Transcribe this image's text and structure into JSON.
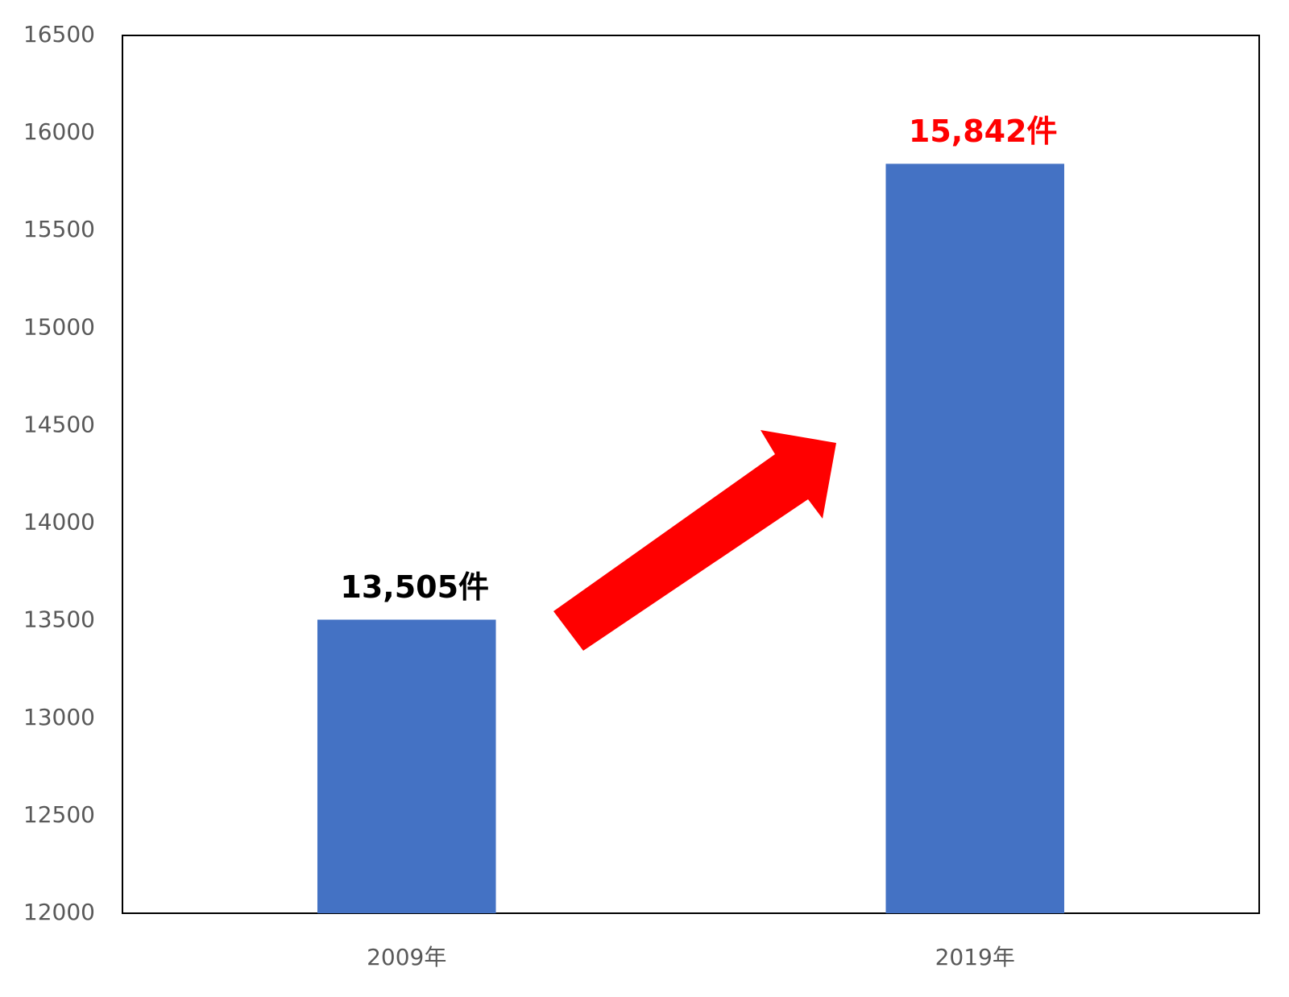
{
  "chart_data": {
    "type": "bar",
    "categories": [
      "2009年",
      "2019年"
    ],
    "values": [
      13505,
      15842
    ],
    "value_labels": [
      "13,505件",
      "15,842件"
    ],
    "value_label_colors": [
      "#000000",
      "#ff0000"
    ],
    "color": "#4472c4",
    "ylim": [
      12000,
      16500
    ],
    "yticks": [
      12000,
      12500,
      13000,
      13500,
      14000,
      14500,
      15000,
      15500,
      16000,
      16500
    ],
    "grid": false
  }
}
